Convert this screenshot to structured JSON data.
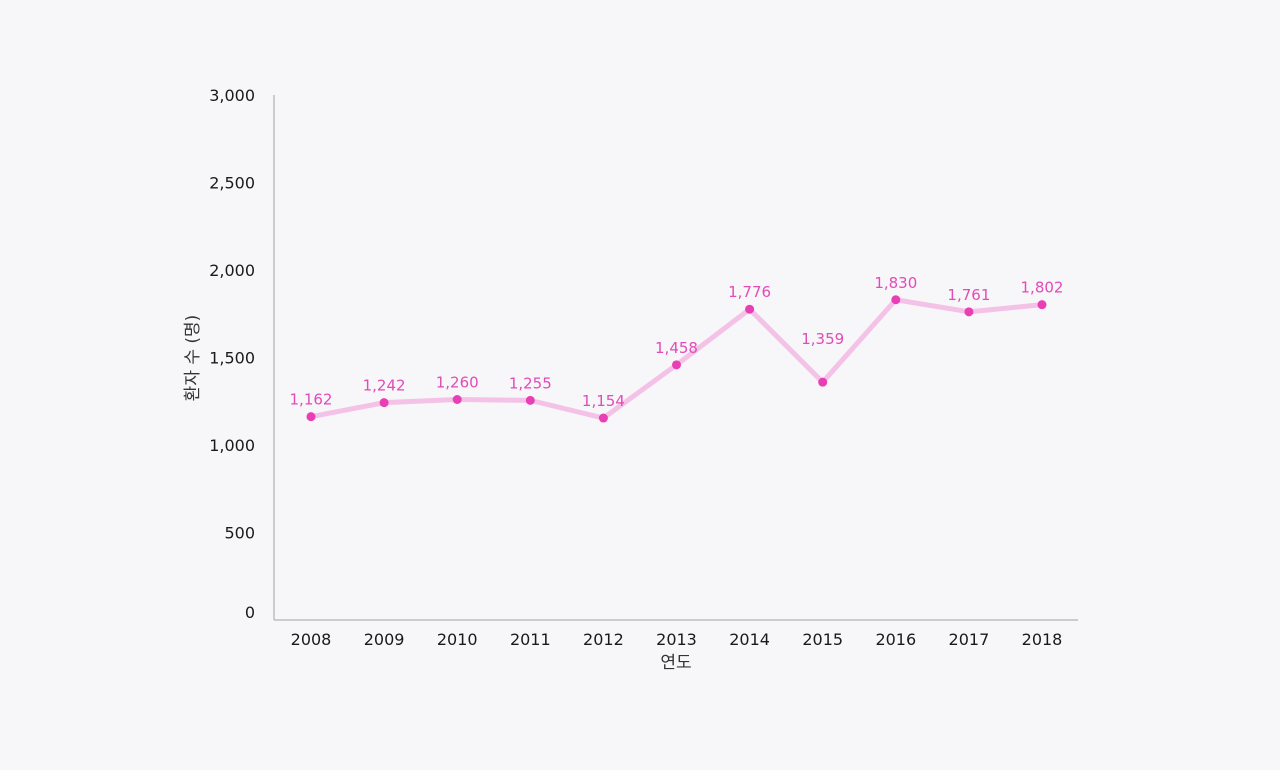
{
  "chart_data": {
    "type": "line",
    "title": "",
    "xlabel": "연도",
    "ylabel": "환자 수 (명)",
    "categories": [
      "2008",
      "2009",
      "2010",
      "2011",
      "2012",
      "2013",
      "2014",
      "2015",
      "2016",
      "2017",
      "2018"
    ],
    "series": [
      {
        "values": [
          1162,
          1242,
          1260,
          1255,
          1154,
          1458,
          1776,
          1359,
          1830,
          1761,
          1802
        ],
        "data_labels": [
          "1,162",
          "1,242",
          "1,260",
          "1,255",
          "1,154",
          "1,458",
          "1,776",
          "1,359",
          "1,830",
          "1,761",
          "1,802"
        ]
      }
    ],
    "ylim": [
      0,
      3000
    ],
    "yticks": [
      0,
      500,
      1000,
      1500,
      2000,
      2500,
      3000
    ],
    "ytick_labels": [
      "0",
      "500",
      "1,000",
      "1,500",
      "2,000",
      "2,500",
      "3,000"
    ],
    "grid": false,
    "legend": "none",
    "colors": {
      "line": "#f4c2e6",
      "marker": "#e83fb5",
      "label": "#e24bb8",
      "axis": "#bdbdbd",
      "background": "#f7f6f9"
    }
  }
}
